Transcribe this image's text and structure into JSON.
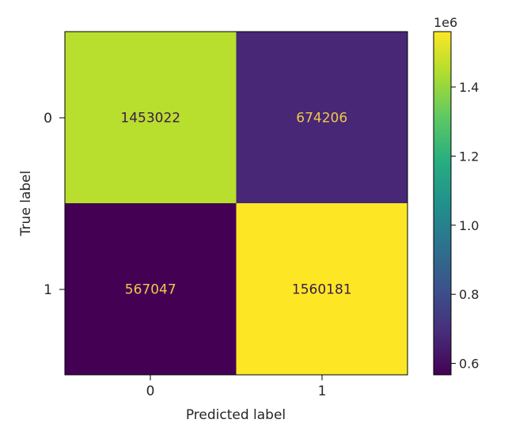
{
  "chart_data": {
    "type": "heatmap",
    "title": "",
    "xlabel": "Predicted label",
    "ylabel": "True label",
    "x_categories": [
      "0",
      "1"
    ],
    "y_categories": [
      "0",
      "1"
    ],
    "values": [
      [
        1453022,
        674206
      ],
      [
        567047,
        1560181
      ]
    ],
    "value_labels": [
      [
        "1453022",
        "674206"
      ],
      [
        "567047",
        "1560181"
      ]
    ],
    "colormap": "viridis",
    "colorbar": {
      "range": [
        567047,
        1560181
      ],
      "ticks": [
        0.6,
        0.8,
        1.0,
        1.2,
        1.4
      ],
      "tick_labels": [
        "0.6",
        "0.8",
        "1.0",
        "1.2",
        "1.4"
      ],
      "exponent_label": "1e6",
      "scale": 1000000
    },
    "text_colors": {
      "on_light": "#3b1a4a",
      "on_dark": "#f1c74a"
    }
  }
}
